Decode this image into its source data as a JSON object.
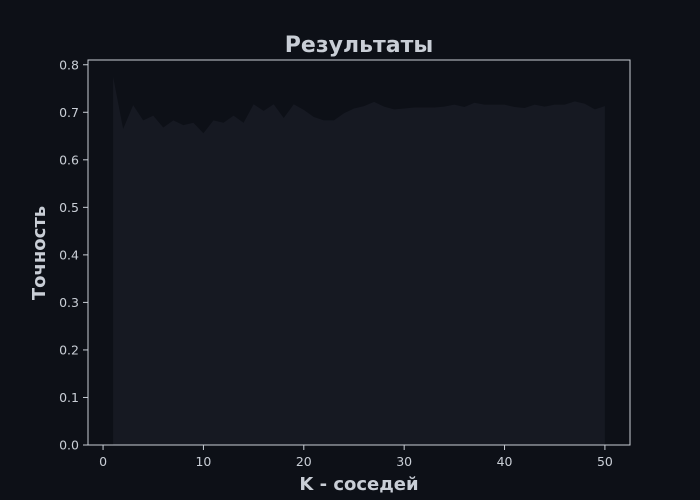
{
  "chart_data": {
    "type": "area",
    "title": "Результаты",
    "xlabel": "K - соседей",
    "ylabel": "Точность",
    "xlim": [
      -1.5,
      52.5
    ],
    "ylim": [
      0.0,
      0.81
    ],
    "xticks": [
      0,
      10,
      20,
      30,
      40,
      50
    ],
    "yticks": [
      0.0,
      0.1,
      0.2,
      0.3,
      0.4,
      0.5,
      0.6,
      0.7,
      0.8
    ],
    "grid": false,
    "x": [
      1,
      2,
      3,
      4,
      5,
      6,
      7,
      8,
      9,
      10,
      11,
      12,
      13,
      14,
      15,
      16,
      17,
      18,
      19,
      20,
      21,
      22,
      23,
      24,
      25,
      26,
      27,
      28,
      29,
      30,
      31,
      32,
      33,
      34,
      35,
      36,
      37,
      38,
      39,
      40,
      41,
      42,
      43,
      44,
      45,
      46,
      47,
      48,
      49,
      50
    ],
    "series": [
      {
        "values": [
          0.775,
          0.665,
          0.715,
          0.683,
          0.693,
          0.668,
          0.683,
          0.673,
          0.678,
          0.656,
          0.683,
          0.678,
          0.693,
          0.678,
          0.717,
          0.703,
          0.717,
          0.688,
          0.717,
          0.705,
          0.69,
          0.683,
          0.683,
          0.698,
          0.708,
          0.713,
          0.722,
          0.712,
          0.706,
          0.708,
          0.71,
          0.71,
          0.71,
          0.712,
          0.716,
          0.711,
          0.72,
          0.716,
          0.716,
          0.716,
          0.711,
          0.709,
          0.716,
          0.712,
          0.716,
          0.716,
          0.723,
          0.718,
          0.706,
          0.713
        ]
      }
    ],
    "colors": {
      "background": "#0d1017",
      "plot_area": "#0d1017",
      "fill": "#161922",
      "axis": "#c9ced6"
    }
  }
}
